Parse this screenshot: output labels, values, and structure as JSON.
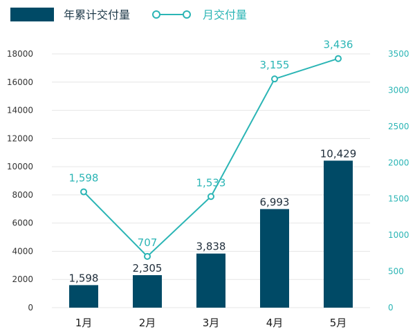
{
  "chart_data": {
    "type": "bar",
    "categories": [
      "1月",
      "2月",
      "3月",
      "4月",
      "5月"
    ],
    "series": [
      {
        "name": "年累计交付量",
        "type": "bar",
        "axis": "left",
        "values": [
          1598,
          2305,
          3838,
          6993,
          10429
        ],
        "labels": [
          "1,598",
          "2,305",
          "3,838",
          "6,993",
          "10,429"
        ],
        "color": "#004a66"
      },
      {
        "name": "月交付量",
        "type": "line",
        "axis": "right",
        "values": [
          1598,
          707,
          1533,
          3155,
          3436
        ],
        "labels": [
          "1,598",
          "707",
          "1,533",
          "3,155",
          "3,436"
        ],
        "color": "#2bb5b5"
      }
    ],
    "y_left": {
      "ylim": [
        0,
        18000
      ],
      "ticks": [
        "0",
        "2000",
        "4000",
        "6000",
        "8000",
        "10000",
        "12000",
        "14000",
        "16000",
        "18000"
      ]
    },
    "y_right": {
      "ylim": [
        0,
        3500
      ],
      "ticks": [
        "0",
        "500",
        "1000",
        "1500",
        "2000",
        "2500",
        "3000",
        "3500"
      ]
    },
    "grid": true,
    "legend": "top-left"
  }
}
